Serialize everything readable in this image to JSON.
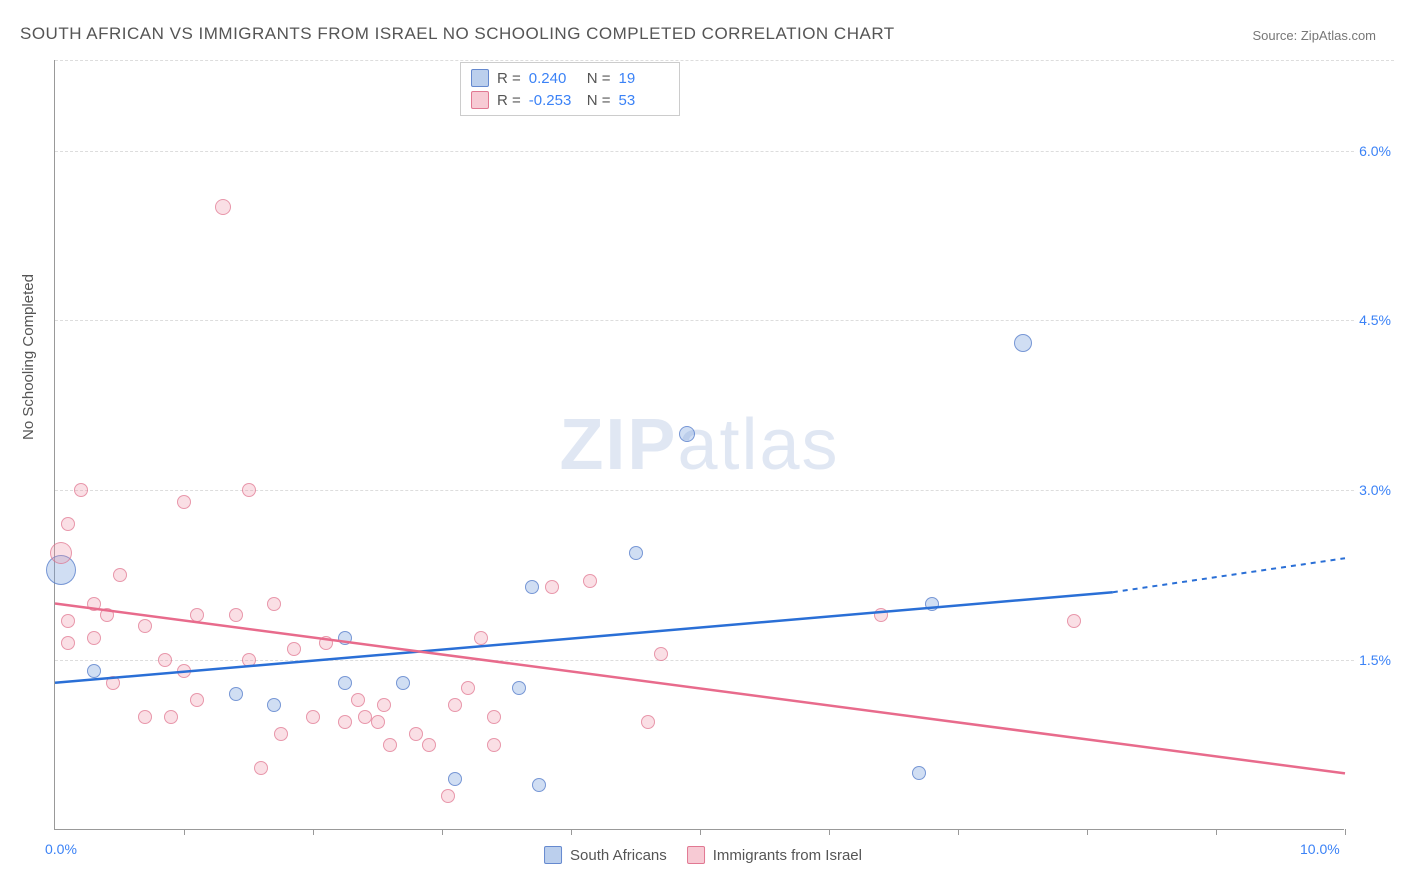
{
  "title": "SOUTH AFRICAN VS IMMIGRANTS FROM ISRAEL NO SCHOOLING COMPLETED CORRELATION CHART",
  "source": "Source: ZipAtlas.com",
  "watermark_bold": "ZIP",
  "watermark_light": "atlas",
  "y_axis_label": "No Schooling Completed",
  "chart": {
    "type": "scatter",
    "xlim": [
      0,
      10
    ],
    "ylim": [
      0,
      6.8
    ],
    "x_tick_labels": [
      {
        "x": 0,
        "label": "0.0%"
      },
      {
        "x": 10,
        "label": "10.0%"
      }
    ],
    "y_ticks": [
      {
        "y": 1.5,
        "label": "1.5%"
      },
      {
        "y": 3.0,
        "label": "3.0%"
      },
      {
        "y": 4.5,
        "label": "4.5%"
      },
      {
        "y": 6.0,
        "label": "6.0%"
      }
    ],
    "x_tick_marks": [
      1,
      2,
      3,
      4,
      5,
      6,
      7,
      8,
      9,
      10
    ],
    "background_color": "#ffffff",
    "grid_color": "#dddddd",
    "series": [
      {
        "name": "South Africans",
        "color_fill": "rgba(120,160,220,0.35)",
        "color_stroke": "rgba(80,120,200,0.7)",
        "marker_base_size": 18,
        "legend_R": "0.240",
        "legend_N": "19",
        "trendline": {
          "x1": 0,
          "y1": 1.3,
          "x2": 8.2,
          "y2": 2.1,
          "x2_ext": 10,
          "y2_ext": 2.4,
          "color": "#2a6fd6",
          "width": 2.5
        },
        "points": [
          {
            "x": 0.05,
            "y": 2.3,
            "r": 30
          },
          {
            "x": 0.3,
            "y": 1.4,
            "r": 14
          },
          {
            "x": 1.4,
            "y": 1.2,
            "r": 14
          },
          {
            "x": 1.7,
            "y": 1.1,
            "r": 14
          },
          {
            "x": 2.25,
            "y": 1.7,
            "r": 14
          },
          {
            "x": 2.25,
            "y": 1.3,
            "r": 14
          },
          {
            "x": 2.7,
            "y": 1.3,
            "r": 14
          },
          {
            "x": 3.1,
            "y": 0.45,
            "r": 14
          },
          {
            "x": 3.6,
            "y": 1.25,
            "r": 14
          },
          {
            "x": 3.75,
            "y": 0.4,
            "r": 14
          },
          {
            "x": 3.7,
            "y": 2.15,
            "r": 14
          },
          {
            "x": 4.5,
            "y": 2.45,
            "r": 14
          },
          {
            "x": 4.9,
            "y": 3.5,
            "r": 16
          },
          {
            "x": 6.8,
            "y": 2.0,
            "r": 14
          },
          {
            "x": 6.7,
            "y": 0.5,
            "r": 14
          },
          {
            "x": 7.5,
            "y": 4.3,
            "r": 18
          }
        ]
      },
      {
        "name": "Immigrants from Israel",
        "color_fill": "rgba(240,150,170,0.3)",
        "color_stroke": "rgba(220,100,130,0.6)",
        "marker_base_size": 16,
        "legend_R": "-0.253",
        "legend_N": "53",
        "trendline": {
          "x1": 0,
          "y1": 2.0,
          "x2": 10,
          "y2": 0.5,
          "color": "#e86b8c",
          "width": 2.5
        },
        "points": [
          {
            "x": 0.05,
            "y": 2.45,
            "r": 22
          },
          {
            "x": 0.1,
            "y": 2.7,
            "r": 14
          },
          {
            "x": 0.1,
            "y": 1.85,
            "r": 14
          },
          {
            "x": 0.1,
            "y": 1.65,
            "r": 14
          },
          {
            "x": 0.2,
            "y": 3.0,
            "r": 14
          },
          {
            "x": 0.3,
            "y": 2.0,
            "r": 14
          },
          {
            "x": 0.3,
            "y": 1.7,
            "r": 14
          },
          {
            "x": 0.4,
            "y": 1.9,
            "r": 14
          },
          {
            "x": 0.45,
            "y": 1.3,
            "r": 14
          },
          {
            "x": 0.5,
            "y": 2.25,
            "r": 14
          },
          {
            "x": 0.7,
            "y": 1.8,
            "r": 14
          },
          {
            "x": 0.7,
            "y": 1.0,
            "r": 14
          },
          {
            "x": 0.85,
            "y": 1.5,
            "r": 14
          },
          {
            "x": 0.9,
            "y": 1.0,
            "r": 14
          },
          {
            "x": 1.0,
            "y": 2.9,
            "r": 14
          },
          {
            "x": 1.0,
            "y": 1.4,
            "r": 14
          },
          {
            "x": 1.1,
            "y": 1.9,
            "r": 14
          },
          {
            "x": 1.1,
            "y": 1.15,
            "r": 14
          },
          {
            "x": 1.3,
            "y": 5.5,
            "r": 16
          },
          {
            "x": 1.4,
            "y": 1.9,
            "r": 14
          },
          {
            "x": 1.5,
            "y": 3.0,
            "r": 14
          },
          {
            "x": 1.5,
            "y": 1.5,
            "r": 14
          },
          {
            "x": 1.6,
            "y": 0.55,
            "r": 14
          },
          {
            "x": 1.7,
            "y": 2.0,
            "r": 14
          },
          {
            "x": 1.75,
            "y": 0.85,
            "r": 14
          },
          {
            "x": 1.85,
            "y": 1.6,
            "r": 14
          },
          {
            "x": 2.0,
            "y": 1.0,
            "r": 14
          },
          {
            "x": 2.1,
            "y": 1.65,
            "r": 14
          },
          {
            "x": 2.25,
            "y": 0.95,
            "r": 14
          },
          {
            "x": 2.35,
            "y": 1.15,
            "r": 14
          },
          {
            "x": 2.4,
            "y": 1.0,
            "r": 14
          },
          {
            "x": 2.5,
            "y": 0.95,
            "r": 14
          },
          {
            "x": 2.55,
            "y": 1.1,
            "r": 14
          },
          {
            "x": 2.6,
            "y": 0.75,
            "r": 14
          },
          {
            "x": 2.8,
            "y": 0.85,
            "r": 14
          },
          {
            "x": 2.9,
            "y": 0.75,
            "r": 14
          },
          {
            "x": 3.05,
            "y": 0.3,
            "r": 14
          },
          {
            "x": 3.1,
            "y": 1.1,
            "r": 14
          },
          {
            "x": 3.2,
            "y": 1.25,
            "r": 14
          },
          {
            "x": 3.3,
            "y": 1.7,
            "r": 14
          },
          {
            "x": 3.4,
            "y": 1.0,
            "r": 14
          },
          {
            "x": 3.4,
            "y": 0.75,
            "r": 14
          },
          {
            "x": 3.85,
            "y": 2.15,
            "r": 14
          },
          {
            "x": 4.15,
            "y": 2.2,
            "r": 14
          },
          {
            "x": 4.6,
            "y": 0.95,
            "r": 14
          },
          {
            "x": 4.7,
            "y": 1.55,
            "r": 14
          },
          {
            "x": 6.4,
            "y": 1.9,
            "r": 14
          },
          {
            "x": 7.9,
            "y": 1.85,
            "r": 14
          }
        ]
      }
    ]
  },
  "legend_bottom": [
    {
      "swatch": "blue",
      "label": "South Africans"
    },
    {
      "swatch": "pink",
      "label": "Immigrants from Israel"
    }
  ]
}
